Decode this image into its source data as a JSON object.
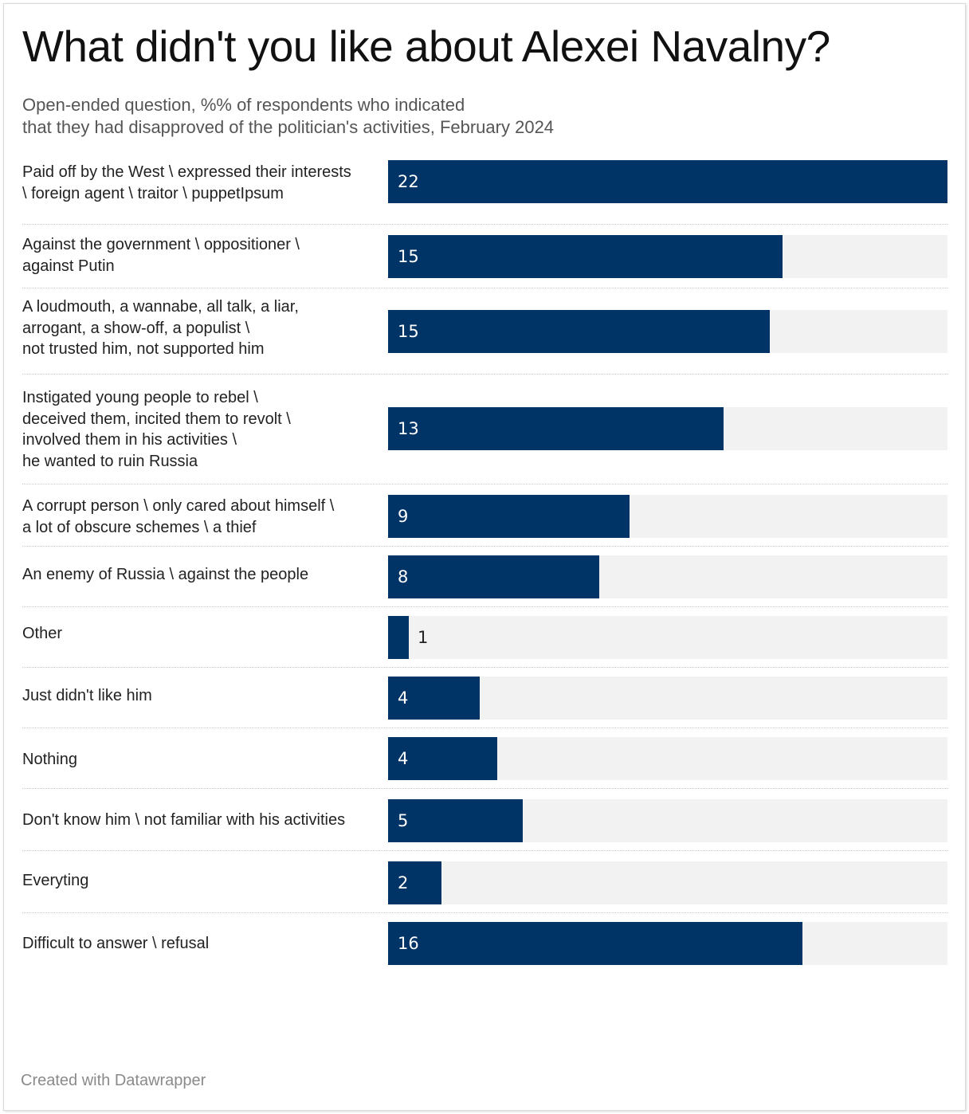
{
  "header": {
    "title": "What didn't you like about Alexei Navalny?",
    "subtitle": "Open-ended question, %% of respondents who indicated\nthat they had disapproved of the politician's activities, February 2024"
  },
  "footer": {
    "credit": "Created with Datawrapper"
  },
  "colors": {
    "bar": "#003366",
    "bar_background": "#f2f2f2",
    "label_inside": "#ffffff",
    "label_outside": "#222222"
  },
  "chart_data": {
    "type": "bar",
    "orientation": "horizontal",
    "title": "What didn't you like about Alexei Navalny?",
    "subtitle": "Open-ended question, %% of respondents who indicated that they had disapproved of the politician's activities, February 2024",
    "categories": [
      "Paid off by the West \\ expressed their interests\n\\ foreign agent \\ traitor \\ puppetIpsum",
      "Against the government \\ oppositioner \\\nagainst Putin",
      "A loudmouth, a wannabe, all talk, a liar,\narrogant, a show-off, a populist \\\nnot trusted him, not supported him",
      "Instigated young people to rebel \\\ndeceived them, incited them to revolt \\\ninvolved them in his activities \\\nhe wanted to ruin Russia",
      "A corrupt person \\ only cared about himself \\\na lot of obscure schemes \\ a thief",
      "An enemy of Russia \\ against the people",
      "Other",
      "Just didn't like him",
      "Nothing",
      "Don't know him \\ not familiar with his activities",
      "Everyting",
      "Difficult to answer \\ refusal"
    ],
    "values": [
      22,
      15,
      15,
      13,
      9,
      8,
      1,
      4,
      4,
      5,
      2,
      16
    ],
    "bar_extent": [
      22,
      15.5,
      15,
      13.2,
      9.5,
      8.3,
      0.8,
      3.6,
      4.3,
      5.3,
      2.1,
      16.3
    ],
    "xlim": [
      0,
      22
    ],
    "grid": false,
    "legend": "none"
  }
}
